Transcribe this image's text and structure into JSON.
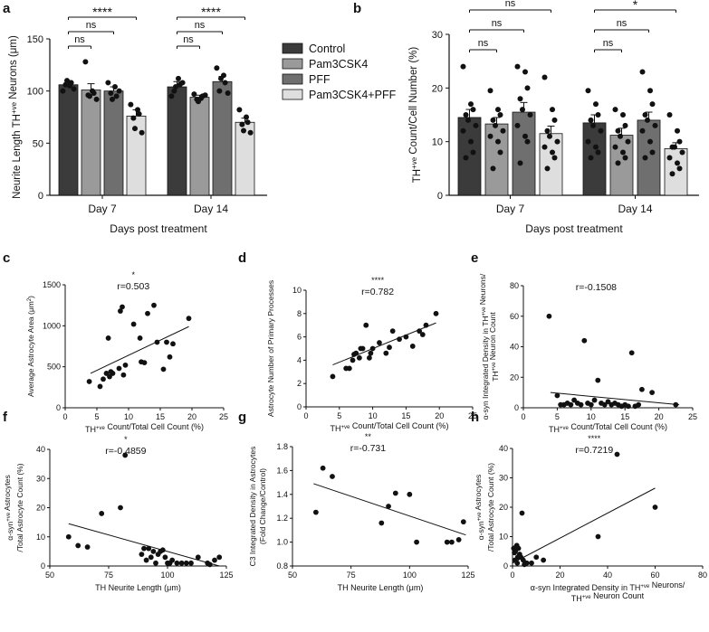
{
  "figure": {
    "panels": [
      "a",
      "b",
      "c",
      "d",
      "e",
      "f",
      "g",
      "h"
    ],
    "legend": [
      "Control",
      "Pam3CSK4",
      "PFF",
      "Pam3CSK4+PFF"
    ],
    "colors": {
      "Control": "#3b3b3b",
      "Pam3CSK4": "#9a9a9a",
      "PFF": "#6f6f6f",
      "Pam3CSK4+PFF": "#dedede",
      "axis": "#111111",
      "points": "#111111"
    }
  },
  "chart_data": [
    {
      "id": "a",
      "type": "bar",
      "title": "",
      "ylabel": "Neurite Length TH+ve Neurons (μm)",
      "xlabel": "Days post treatment",
      "ylim": [
        0,
        150
      ],
      "yticks": [
        0,
        50,
        100,
        150
      ],
      "categories": [
        "Day 7",
        "Day 14"
      ],
      "series": [
        {
          "name": "Control",
          "values": [
            106,
            104
          ],
          "err": [
            4,
            5
          ],
          "points": [
            [
              100,
              105,
              108,
              106,
              110,
              102
            ],
            [
              95,
              112,
              106,
              100,
              104,
              108
            ]
          ]
        },
        {
          "name": "Pam3CSK4",
          "values": [
            101,
            94
          ],
          "err": [
            6,
            2
          ],
          "points": [
            [
              128,
              100,
              98,
              96,
              95,
              92
            ],
            [
              97,
              93,
              95,
              92,
              90,
              96
            ]
          ]
        },
        {
          "name": "PFF",
          "values": [
            100,
            109
          ],
          "err": [
            4,
            5
          ],
          "points": [
            [
              108,
              104,
              95,
              98,
              92,
              100
            ],
            [
              122,
              115,
              108,
              100,
              112,
              98
            ]
          ]
        },
        {
          "name": "Pam3CSK4+PFF",
          "values": [
            76,
            70
          ],
          "err": [
            6,
            4
          ],
          "points": [
            [
              87,
              82,
              78,
              74,
              64,
              60
            ],
            [
              82,
              75,
              70,
              68,
              62,
              60
            ]
          ]
        }
      ],
      "brackets": [
        {
          "g": 0,
          "from": 0,
          "to": 3,
          "label": "****"
        },
        {
          "g": 0,
          "from": 0,
          "to": 2,
          "label": "ns"
        },
        {
          "g": 0,
          "from": 0,
          "to": 1,
          "label": "ns"
        },
        {
          "g": 1,
          "from": 0,
          "to": 3,
          "label": "****"
        },
        {
          "g": 1,
          "from": 0,
          "to": 2,
          "label": "ns"
        },
        {
          "g": 1,
          "from": 0,
          "to": 1,
          "label": "ns"
        }
      ]
    },
    {
      "id": "b",
      "type": "bar",
      "title": "",
      "ylabel": "TH+ve Count/Cell Number (%)",
      "xlabel": "Days post treatment",
      "ylim": [
        0,
        30
      ],
      "yticks": [
        0,
        10,
        20,
        30
      ],
      "categories": [
        "Day 7",
        "Day 14"
      ],
      "series": [
        {
          "name": "Control",
          "values": [
            14.5,
            13.5
          ],
          "err": [
            1.5,
            1.5
          ],
          "points": [
            [
              24,
              17,
              16,
              15,
              14,
              13,
              12,
              10,
              8,
              7
            ],
            [
              19.5,
              17,
              15,
              14,
              13,
              12,
              10,
              9,
              8,
              7
            ]
          ]
        },
        {
          "name": "Pam3CSK4",
          "values": [
            13.3,
            11.2
          ],
          "err": [
            1.2,
            1.3
          ],
          "points": [
            [
              19.5,
              16,
              15,
              14,
              13,
              12,
              11,
              10,
              8,
              5
            ],
            [
              16,
              15,
              13,
              12,
              11,
              10,
              9,
              8,
              7,
              6
            ]
          ]
        },
        {
          "name": "PFF",
          "values": [
            15.5,
            14
          ],
          "err": [
            1.8,
            1.5
          ],
          "points": [
            [
              24,
              23,
              20,
              18,
              16,
              15,
              13,
              11,
              10,
              6
            ],
            [
              23,
              19.5,
              17,
              15,
              14,
              13,
              12,
              10,
              8,
              7
            ]
          ]
        },
        {
          "name": "Pam3CSK4+PFF",
          "values": [
            11.5,
            8.7
          ],
          "err": [
            1.4,
            1.1
          ],
          "points": [
            [
              22,
              16,
              14,
              12,
              11,
              10,
              9,
              8,
              7,
              5
            ],
            [
              15,
              12,
              10,
              9,
              9,
              8,
              7,
              6,
              5,
              4
            ]
          ]
        }
      ],
      "brackets": [
        {
          "g": 0,
          "from": 0,
          "to": 3,
          "label": "ns"
        },
        {
          "g": 0,
          "from": 0,
          "to": 2,
          "label": "ns"
        },
        {
          "g": 0,
          "from": 0,
          "to": 1,
          "label": "ns"
        },
        {
          "g": 1,
          "from": 0,
          "to": 3,
          "label": "*"
        },
        {
          "g": 1,
          "from": 0,
          "to": 2,
          "label": "ns"
        },
        {
          "g": 1,
          "from": 0,
          "to": 1,
          "label": "ns"
        }
      ]
    },
    {
      "id": "c",
      "type": "scatter",
      "stars": "*",
      "r": "r=0.503",
      "xlabel": "TH+ve Count/Total Cell Count (%)",
      "ylabel": "Average Astrocyte Area (μm2)",
      "xlim": [
        0,
        25
      ],
      "ylim": [
        0,
        1500
      ],
      "xticks": [
        0,
        5,
        10,
        15,
        20,
        25
      ],
      "yticks": [
        0,
        500,
        1000,
        1500
      ],
      "points": [
        [
          3.8,
          320
        ],
        [
          5.5,
          260
        ],
        [
          6,
          350
        ],
        [
          6.5,
          420
        ],
        [
          7,
          380
        ],
        [
          6.8,
          850
        ],
        [
          7.2,
          440
        ],
        [
          7.5,
          420
        ],
        [
          8.5,
          480
        ],
        [
          9.2,
          400
        ],
        [
          9.5,
          520
        ],
        [
          8.7,
          1180
        ],
        [
          9,
          1230
        ],
        [
          10.8,
          1020
        ],
        [
          12,
          560
        ],
        [
          11.8,
          850
        ],
        [
          12.5,
          550
        ],
        [
          13,
          1150
        ],
        [
          14.5,
          800
        ],
        [
          14,
          1250
        ],
        [
          15.5,
          470
        ],
        [
          16,
          800
        ],
        [
          16.5,
          620
        ],
        [
          17,
          780
        ],
        [
          19.5,
          1090
        ]
      ],
      "fit": [
        [
          4,
          420
        ],
        [
          19.5,
          990
        ]
      ]
    },
    {
      "id": "d",
      "type": "scatter",
      "stars": "****",
      "r": "r=0.782",
      "xlabel": "TH+ve Count/Total Cell Count (%)",
      "ylabel": "Astrocyte Number of Primary Processes",
      "xlim": [
        0,
        25
      ],
      "ylim": [
        0,
        10
      ],
      "xticks": [
        0,
        5,
        10,
        15,
        20,
        25
      ],
      "yticks": [
        0,
        2,
        4,
        6,
        8,
        10
      ],
      "points": [
        [
          4,
          2.6
        ],
        [
          6,
          3.3
        ],
        [
          6.5,
          3.3
        ],
        [
          7,
          4
        ],
        [
          7.2,
          4.5
        ],
        [
          7.5,
          4.6
        ],
        [
          8,
          4.2
        ],
        [
          8.2,
          5
        ],
        [
          8.5,
          5
        ],
        [
          9,
          7
        ],
        [
          9.5,
          4.2
        ],
        [
          9.7,
          4.6
        ],
        [
          10,
          5
        ],
        [
          11,
          5.5
        ],
        [
          12,
          4.6
        ],
        [
          12.5,
          5.1
        ],
        [
          13,
          6.5
        ],
        [
          14,
          5.8
        ],
        [
          15,
          6
        ],
        [
          16,
          5.2
        ],
        [
          17,
          6.5
        ],
        [
          17.5,
          6.2
        ],
        [
          18,
          7
        ],
        [
          19.5,
          8
        ]
      ],
      "fit": [
        [
          4,
          3.6
        ],
        [
          19.5,
          7.2
        ]
      ]
    },
    {
      "id": "e",
      "type": "scatter",
      "stars": "",
      "r": "r=-0.1508",
      "xlabel": "TH+ve Count/Total Cell Count (%)",
      "ylabel": "α-syn Integrated Density in TH+ve Neurons/ TH+ve Neuron Count",
      "xlim": [
        0,
        25
      ],
      "ylim": [
        0,
        80
      ],
      "xticks": [
        0,
        5,
        10,
        15,
        20,
        25
      ],
      "yticks": [
        0,
        20,
        40,
        60,
        80
      ],
      "points": [
        [
          3.8,
          60
        ],
        [
          5,
          8
        ],
        [
          5.5,
          2
        ],
        [
          6,
          2
        ],
        [
          6.5,
          3
        ],
        [
          7,
          2
        ],
        [
          7.5,
          5
        ],
        [
          8,
          3
        ],
        [
          8.5,
          2
        ],
        [
          9,
          44
        ],
        [
          9.5,
          3
        ],
        [
          10,
          2
        ],
        [
          10.5,
          5
        ],
        [
          11,
          18
        ],
        [
          11.5,
          3
        ],
        [
          12,
          2
        ],
        [
          12.5,
          4
        ],
        [
          13,
          2
        ],
        [
          13.5,
          3
        ],
        [
          14,
          2
        ],
        [
          14.5,
          1
        ],
        [
          15,
          2
        ],
        [
          15.5,
          1
        ],
        [
          16,
          36
        ],
        [
          16.5,
          1
        ],
        [
          17,
          2
        ],
        [
          17.5,
          12
        ],
        [
          19,
          10
        ],
        [
          22.5,
          2
        ]
      ],
      "fit": [
        [
          4,
          10
        ],
        [
          23,
          2
        ]
      ]
    },
    {
      "id": "f",
      "type": "scatter",
      "stars": "*",
      "r": "r=-0.4859",
      "xlabel": "TH Neurite Length (μm)",
      "ylabel": "α-syn+ve Astrocytes /Total Astrocyte Count (%)",
      "xlim": [
        50,
        125
      ],
      "ylim": [
        0,
        40
      ],
      "xticks": [
        50,
        75,
        100,
        125
      ],
      "yticks": [
        0,
        10,
        20,
        30,
        40
      ],
      "points": [
        [
          58,
          10
        ],
        [
          62,
          7
        ],
        [
          66,
          6.5
        ],
        [
          72,
          18
        ],
        [
          80,
          20
        ],
        [
          82,
          38
        ],
        [
          89,
          4
        ],
        [
          90,
          6
        ],
        [
          91,
          2
        ],
        [
          92,
          6
        ],
        [
          93,
          3
        ],
        [
          94,
          5
        ],
        [
          95,
          1
        ],
        [
          96,
          4
        ],
        [
          97,
          5
        ],
        [
          98,
          5.5
        ],
        [
          99,
          3
        ],
        [
          100,
          1
        ],
        [
          101,
          1
        ],
        [
          102,
          2
        ],
        [
          104,
          1
        ],
        [
          106,
          1
        ],
        [
          108,
          1
        ],
        [
          110,
          1
        ],
        [
          113,
          3
        ],
        [
          117,
          1
        ],
        [
          118,
          0.5
        ],
        [
          120,
          2
        ],
        [
          122,
          3
        ]
      ],
      "fit": [
        [
          58,
          14.5
        ],
        [
          122,
          0
        ]
      ]
    },
    {
      "id": "g",
      "type": "scatter",
      "stars": "**",
      "r": "r=-0.731",
      "xlabel": "TH Neurite Length (μm)",
      "ylabel": "C3 Integrated Density in Astrocytes (Fold Change/Control)",
      "xlim": [
        50,
        125
      ],
      "ylim": [
        0.8,
        1.8
      ],
      "xticks": [
        50,
        75,
        100,
        125
      ],
      "yticks": [
        0.8,
        1.0,
        1.2,
        1.4,
        1.6,
        1.8
      ],
      "points": [
        [
          60,
          1.25
        ],
        [
          63,
          1.62
        ],
        [
          67,
          1.55
        ],
        [
          88,
          1.16
        ],
        [
          91,
          1.3
        ],
        [
          94,
          1.41
        ],
        [
          100,
          1.4
        ],
        [
          103,
          1.0
        ],
        [
          116,
          1.0
        ],
        [
          118,
          1.0
        ],
        [
          121,
          1.02
        ],
        [
          123,
          1.17
        ]
      ],
      "fit": [
        [
          59,
          1.49
        ],
        [
          124,
          1.06
        ]
      ]
    },
    {
      "id": "h",
      "type": "scatter",
      "stars": "****",
      "r": "r=0.7219",
      "xlabel": "α-syn Integrated Density in TH+ve Neurons/ TH+ve Neuron Count",
      "ylabel": "α-syn+ve Astrocytes /Total Astrocyte Count (%)",
      "xlim": [
        0,
        80
      ],
      "ylim": [
        0,
        40
      ],
      "xticks": [
        0,
        20,
        40,
        60,
        80
      ],
      "yticks": [
        0,
        10,
        20,
        30,
        40
      ],
      "points": [
        [
          0.5,
          6
        ],
        [
          0.8,
          4.5
        ],
        [
          1,
          2
        ],
        [
          1.2,
          5
        ],
        [
          1.5,
          6.5
        ],
        [
          1.8,
          7
        ],
        [
          2,
          1
        ],
        [
          2.2,
          3
        ],
        [
          2.5,
          6
        ],
        [
          3,
          4
        ],
        [
          3.5,
          3
        ],
        [
          4,
          18
        ],
        [
          4.5,
          2
        ],
        [
          5,
          0.5
        ],
        [
          5.5,
          1
        ],
        [
          6,
          1
        ],
        [
          8,
          1
        ],
        [
          10,
          3
        ],
        [
          13,
          2
        ],
        [
          36,
          10
        ],
        [
          44,
          38
        ],
        [
          60,
          20
        ]
      ],
      "fit": [
        [
          0,
          1
        ],
        [
          60,
          26.5
        ]
      ]
    }
  ]
}
